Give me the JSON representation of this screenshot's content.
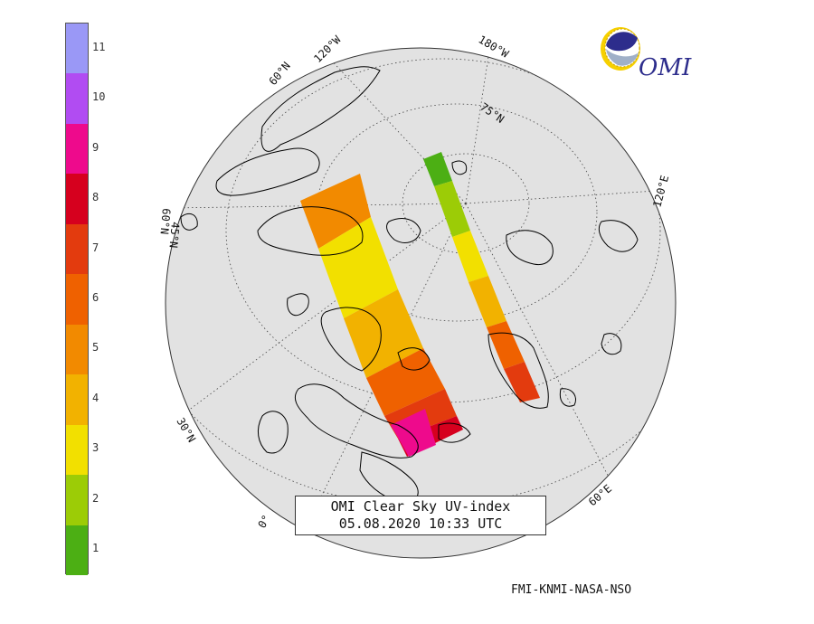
{
  "title": {
    "line1": "OMI Clear Sky UV-index",
    "line2": "05.08.2020 10:33 UTC"
  },
  "credit": "FMI-KNMI-NASA-NSO",
  "logo": {
    "text": "OMI"
  },
  "colorbar": {
    "labels": [
      "1",
      "2",
      "3",
      "4",
      "5",
      "6",
      "7",
      "8",
      "9",
      "10",
      "11"
    ],
    "colors": [
      "#4caf14",
      "#9ccc06",
      "#f2e000",
      "#f2b200",
      "#f28a00",
      "#ef6100",
      "#e33b0e",
      "#d6001e",
      "#ee0a8c",
      "#b14cf2",
      "#9a98f6"
    ]
  },
  "graticule_labels": {
    "lon_120W": "120°W",
    "lon_180W": "180°W",
    "lat_60N_a": "60°N",
    "lat_75N": "75°N",
    "lon_120E": "120°E",
    "lat_60N_b": "60°N",
    "lat_45N": "45°N",
    "lat_30N": "30°N",
    "lon_0": "0°",
    "lon_60E": "60°E"
  },
  "map_style": {
    "ocean_color": "#e2e2e2",
    "land_line_color": "#000000",
    "graticule_color": "#444444"
  }
}
